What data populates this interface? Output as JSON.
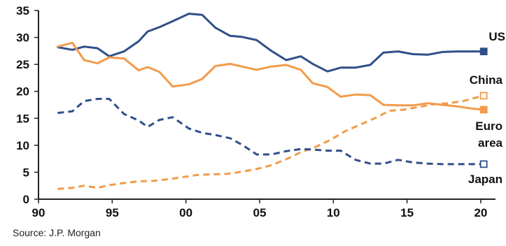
{
  "source_text": "Source: J.P. Morgan",
  "colors": {
    "blue": "#2f4f8a",
    "orange": "#f29b4a",
    "axis": "#222222"
  },
  "chart_data": {
    "type": "line",
    "xlim": [
      1990,
      2021
    ],
    "ylim": [
      0,
      35
    ],
    "x_ticks": [
      {
        "value": 1990,
        "label": "90"
      },
      {
        "value": 1995,
        "label": "95"
      },
      {
        "value": 2000,
        "label": "00"
      },
      {
        "value": 2005,
        "label": "05"
      },
      {
        "value": 2010,
        "label": "10"
      },
      {
        "value": 2015,
        "label": "15"
      },
      {
        "value": 2020,
        "label": "20"
      }
    ],
    "y_ticks": [
      {
        "value": 0,
        "label": "0"
      },
      {
        "value": 5,
        "label": "5"
      },
      {
        "value": 10,
        "label": "10"
      },
      {
        "value": 15,
        "label": "15"
      },
      {
        "value": 20,
        "label": "20"
      },
      {
        "value": 25,
        "label": "25"
      },
      {
        "value": 30,
        "label": "30"
      },
      {
        "value": 35,
        "label": "35"
      }
    ],
    "series": [
      {
        "name": "US",
        "label_lines": [
          "US"
        ],
        "color": "#2f4f8a",
        "dashed": false,
        "end_marker": "filled",
        "x": [
          1991.3,
          1992.3,
          1993.1,
          1994.0,
          1994.8,
          1995.8,
          1996.8,
          1997.4,
          1998.2,
          1999.1,
          2000.2,
          2001.1,
          2002.0,
          2003.0,
          2003.8,
          2004.8,
          2005.8,
          2006.8,
          2007.8,
          2008.6,
          2009.6,
          2010.5,
          2011.5,
          2012.5,
          2013.4,
          2014.4,
          2015.4,
          2016.4,
          2017.4,
          2018.4,
          2019.4,
          2020.2
        ],
        "y": [
          28.2,
          27.7,
          28.3,
          28.0,
          26.5,
          27.4,
          29.3,
          31.1,
          31.9,
          33.0,
          34.4,
          34.2,
          31.8,
          30.3,
          30.1,
          29.5,
          27.5,
          25.8,
          26.5,
          25.1,
          23.7,
          24.4,
          24.4,
          24.9,
          27.2,
          27.4,
          26.9,
          26.8,
          27.3,
          27.4,
          27.4,
          27.4
        ]
      },
      {
        "name": "China",
        "label_lines": [
          "China"
        ],
        "color": "#f29b4a",
        "dashed": true,
        "end_marker": "open",
        "x": [
          1991.3,
          1992.3,
          1993.1,
          1994.0,
          1994.8,
          1995.8,
          1996.8,
          1997.8,
          1998.8,
          1999.8,
          2000.8,
          2001.8,
          2002.8,
          2003.8,
          2004.8,
          2005.8,
          2006.8,
          2007.8,
          2008.8,
          2009.8,
          2010.8,
          2011.8,
          2012.8,
          2013.8,
          2014.8,
          2015.8,
          2016.8,
          2017.8,
          2018.8,
          2019.5,
          2020.2
        ],
        "y": [
          1.9,
          2.1,
          2.5,
          2.1,
          2.6,
          3.0,
          3.3,
          3.4,
          3.7,
          4.1,
          4.5,
          4.6,
          4.7,
          5.1,
          5.6,
          6.3,
          7.4,
          8.7,
          9.7,
          11.0,
          12.6,
          13.8,
          15.0,
          16.4,
          16.6,
          17.1,
          17.6,
          17.8,
          18.2,
          18.7,
          19.2
        ]
      },
      {
        "name": "Euro area",
        "label_lines": [
          "Euro",
          "area"
        ],
        "color": "#f29b4a",
        "dashed": false,
        "end_marker": "filled",
        "x": [
          1991.3,
          1992.3,
          1993.1,
          1994.0,
          1994.8,
          1995.8,
          1996.8,
          1997.4,
          1998.2,
          1999.1,
          2000.2,
          2001.1,
          2002.0,
          2003.0,
          2003.8,
          2004.8,
          2005.8,
          2006.8,
          2007.8,
          2008.6,
          2009.6,
          2010.5,
          2011.5,
          2012.5,
          2013.4,
          2014.4,
          2015.4,
          2016.4,
          2017.4,
          2018.4,
          2019.4,
          2020.2
        ],
        "y": [
          28.3,
          29.0,
          25.8,
          25.2,
          26.3,
          26.1,
          23.9,
          24.5,
          23.6,
          20.9,
          21.3,
          22.3,
          24.7,
          25.1,
          24.6,
          24.0,
          24.6,
          24.9,
          24.0,
          21.5,
          20.8,
          19.0,
          19.4,
          19.3,
          17.5,
          17.4,
          17.4,
          17.8,
          17.5,
          17.2,
          16.8,
          16.6
        ]
      },
      {
        "name": "Japan",
        "label_lines": [
          "Japan"
        ],
        "color": "#2f4f8a",
        "dashed": true,
        "end_marker": "open",
        "x": [
          1991.3,
          1992.3,
          1993.1,
          1994.0,
          1994.8,
          1995.8,
          1996.8,
          1997.4,
          1998.2,
          1999.1,
          2000.2,
          2001.1,
          2002.0,
          2003.0,
          2003.8,
          2004.8,
          2005.8,
          2006.8,
          2007.8,
          2008.6,
          2009.6,
          2010.5,
          2011.5,
          2012.5,
          2013.4,
          2014.4,
          2015.4,
          2016.4,
          2017.4,
          2018.4,
          2019.4,
          2020.2
        ],
        "y": [
          16.0,
          16.3,
          18.2,
          18.6,
          18.6,
          15.8,
          14.6,
          13.4,
          14.7,
          15.2,
          13.1,
          12.3,
          11.9,
          11.3,
          10.1,
          8.3,
          8.3,
          8.9,
          9.3,
          9.2,
          9.0,
          9.0,
          7.3,
          6.6,
          6.6,
          7.3,
          6.8,
          6.6,
          6.5,
          6.5,
          6.5,
          6.5
        ]
      }
    ]
  }
}
